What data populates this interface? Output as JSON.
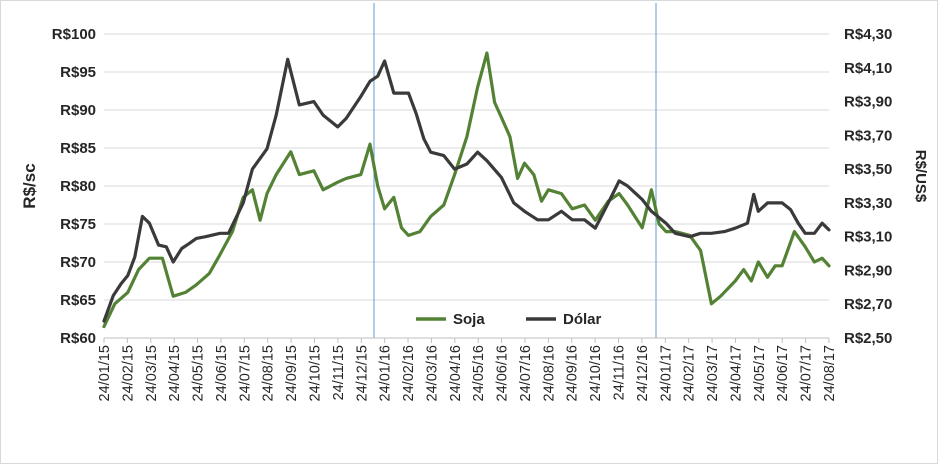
{
  "chart_data": {
    "type": "line",
    "ylabel": "R$/sc",
    "ylabel_right": "R$/US$",
    "ylim": [
      60,
      100
    ],
    "ylim_right": [
      2.5,
      4.3
    ],
    "grid": "horizontal",
    "legend_position": "bottom-center",
    "y_ticks": [
      "R$60",
      "R$65",
      "R$70",
      "R$75",
      "R$80",
      "R$85",
      "R$90",
      "R$95",
      "R$100"
    ],
    "y_right_ticks": [
      "R$2,50",
      "R$2,70",
      "R$2,90",
      "R$3,10",
      "R$3,30",
      "R$3,50",
      "R$3,70",
      "R$3,90",
      "R$4,10",
      "R$4,30"
    ],
    "x_ticks": [
      "24/01/15",
      "24/02/15",
      "24/03/15",
      "24/04/15",
      "24/05/15",
      "24/06/15",
      "24/07/15",
      "24/08/15",
      "24/09/15",
      "24/10/15",
      "24/11/15",
      "24/12/15",
      "24/01/16",
      "24/02/16",
      "24/03/16",
      "24/04/16",
      "24/05/16",
      "24/06/16",
      "24/07/16",
      "24/08/16",
      "24/09/16",
      "24/10/16",
      "24/11/16",
      "24/12/16",
      "24/01/17",
      "24/02/17",
      "24/03/17",
      "24/04/17",
      "24/05/17",
      "24/06/17",
      "24/07/17",
      "24/08/17"
    ],
    "reference_lines_at": [
      "01/01/16",
      "01/01/17"
    ],
    "series": [
      {
        "name": "Soja",
        "axis": "left",
        "color": "#548235",
        "points": [
          [
            "2015-01-24",
            61.5
          ],
          [
            "2015-02-07",
            64.5
          ],
          [
            "2015-02-24",
            66.0
          ],
          [
            "2015-03-10",
            69.0
          ],
          [
            "2015-03-24",
            70.5
          ],
          [
            "2015-04-10",
            70.5
          ],
          [
            "2015-04-24",
            65.5
          ],
          [
            "2015-05-10",
            66.0
          ],
          [
            "2015-05-24",
            67.0
          ],
          [
            "2015-06-10",
            68.5
          ],
          [
            "2015-06-24",
            71.0
          ],
          [
            "2015-07-10",
            74.0
          ],
          [
            "2015-07-24",
            78.5
          ],
          [
            "2015-08-05",
            79.5
          ],
          [
            "2015-08-15",
            75.5
          ],
          [
            "2015-08-24",
            79.0
          ],
          [
            "2015-09-05",
            81.5
          ],
          [
            "2015-09-24",
            84.5
          ],
          [
            "2015-10-05",
            81.5
          ],
          [
            "2015-10-24",
            82.0
          ],
          [
            "2015-11-05",
            79.5
          ],
          [
            "2015-11-24",
            80.5
          ],
          [
            "2015-12-05",
            81.0
          ],
          [
            "2015-12-24",
            81.5
          ],
          [
            "2016-01-05",
            85.5
          ],
          [
            "2016-01-15",
            80.0
          ],
          [
            "2016-01-24",
            77.0
          ],
          [
            "2016-02-05",
            78.5
          ],
          [
            "2016-02-15",
            74.5
          ],
          [
            "2016-02-24",
            73.5
          ],
          [
            "2016-03-10",
            74.0
          ],
          [
            "2016-03-24",
            76.0
          ],
          [
            "2016-04-10",
            77.5
          ],
          [
            "2016-04-24",
            81.5
          ],
          [
            "2016-05-10",
            86.5
          ],
          [
            "2016-05-24",
            93.0
          ],
          [
            "2016-06-05",
            97.5
          ],
          [
            "2016-06-15",
            91.0
          ],
          [
            "2016-06-24",
            89.0
          ],
          [
            "2016-07-05",
            86.5
          ],
          [
            "2016-07-15",
            81.0
          ],
          [
            "2016-07-24",
            83.0
          ],
          [
            "2016-08-05",
            81.5
          ],
          [
            "2016-08-15",
            78.0
          ],
          [
            "2016-08-24",
            79.5
          ],
          [
            "2016-09-10",
            79.0
          ],
          [
            "2016-09-24",
            77.0
          ],
          [
            "2016-10-10",
            77.5
          ],
          [
            "2016-10-24",
            75.5
          ],
          [
            "2016-11-10",
            78.0
          ],
          [
            "2016-11-24",
            79.0
          ],
          [
            "2016-12-05",
            77.5
          ],
          [
            "2016-12-24",
            74.5
          ],
          [
            "2017-01-05",
            79.5
          ],
          [
            "2017-01-15",
            75.0
          ],
          [
            "2017-01-24",
            74.0
          ],
          [
            "2017-02-05",
            74.0
          ],
          [
            "2017-02-24",
            73.5
          ],
          [
            "2017-03-10",
            71.5
          ],
          [
            "2017-03-24",
            64.5
          ],
          [
            "2017-04-05",
            65.5
          ],
          [
            "2017-04-24",
            67.5
          ],
          [
            "2017-05-05",
            69.0
          ],
          [
            "2017-05-15",
            67.5
          ],
          [
            "2017-05-24",
            70.0
          ],
          [
            "2017-06-05",
            68.0
          ],
          [
            "2017-06-15",
            69.5
          ],
          [
            "2017-06-24",
            69.5
          ],
          [
            "2017-07-10",
            74.0
          ],
          [
            "2017-07-24",
            72.0
          ],
          [
            "2017-08-05",
            70.0
          ],
          [
            "2017-08-15",
            70.5
          ],
          [
            "2017-08-24",
            69.5
          ]
        ]
      },
      {
        "name": "Dólar",
        "axis": "right",
        "color": "#3a3a3a",
        "points": [
          [
            "2015-01-24",
            2.6
          ],
          [
            "2015-02-05",
            2.75
          ],
          [
            "2015-02-15",
            2.82
          ],
          [
            "2015-02-24",
            2.87
          ],
          [
            "2015-03-05",
            2.98
          ],
          [
            "2015-03-15",
            3.22
          ],
          [
            "2015-03-24",
            3.18
          ],
          [
            "2015-04-05",
            3.05
          ],
          [
            "2015-04-15",
            3.04
          ],
          [
            "2015-04-24",
            2.95
          ],
          [
            "2015-05-05",
            3.03
          ],
          [
            "2015-05-15",
            3.06
          ],
          [
            "2015-05-24",
            3.09
          ],
          [
            "2015-06-05",
            3.1
          ],
          [
            "2015-06-24",
            3.12
          ],
          [
            "2015-07-05",
            3.12
          ],
          [
            "2015-07-24",
            3.3
          ],
          [
            "2015-08-05",
            3.5
          ],
          [
            "2015-08-24",
            3.62
          ],
          [
            "2015-09-05",
            3.82
          ],
          [
            "2015-09-20",
            4.15
          ],
          [
            "2015-10-05",
            3.88
          ],
          [
            "2015-10-24",
            3.9
          ],
          [
            "2015-11-05",
            3.82
          ],
          [
            "2015-11-24",
            3.75
          ],
          [
            "2015-12-05",
            3.8
          ],
          [
            "2015-12-24",
            3.93
          ],
          [
            "2016-01-05",
            4.02
          ],
          [
            "2016-01-15",
            4.05
          ],
          [
            "2016-01-24",
            4.14
          ],
          [
            "2016-02-05",
            3.95
          ],
          [
            "2016-02-24",
            3.95
          ],
          [
            "2016-03-05",
            3.83
          ],
          [
            "2016-03-15",
            3.68
          ],
          [
            "2016-03-24",
            3.6
          ],
          [
            "2016-04-10",
            3.58
          ],
          [
            "2016-04-24",
            3.5
          ],
          [
            "2016-05-10",
            3.53
          ],
          [
            "2016-05-24",
            3.6
          ],
          [
            "2016-06-05",
            3.55
          ],
          [
            "2016-06-24",
            3.45
          ],
          [
            "2016-07-10",
            3.3
          ],
          [
            "2016-07-24",
            3.25
          ],
          [
            "2016-08-10",
            3.2
          ],
          [
            "2016-08-24",
            3.2
          ],
          [
            "2016-09-10",
            3.25
          ],
          [
            "2016-09-24",
            3.2
          ],
          [
            "2016-10-10",
            3.2
          ],
          [
            "2016-10-24",
            3.15
          ],
          [
            "2016-11-10",
            3.3
          ],
          [
            "2016-11-24",
            3.43
          ],
          [
            "2016-12-05",
            3.4
          ],
          [
            "2016-12-24",
            3.32
          ],
          [
            "2017-01-05",
            3.25
          ],
          [
            "2017-01-24",
            3.18
          ],
          [
            "2017-02-05",
            3.12
          ],
          [
            "2017-02-24",
            3.1
          ],
          [
            "2017-03-10",
            3.12
          ],
          [
            "2017-03-24",
            3.12
          ],
          [
            "2017-04-10",
            3.13
          ],
          [
            "2017-04-24",
            3.15
          ],
          [
            "2017-05-10",
            3.18
          ],
          [
            "2017-05-18",
            3.35
          ],
          [
            "2017-05-24",
            3.25
          ],
          [
            "2017-06-05",
            3.3
          ],
          [
            "2017-06-24",
            3.3
          ],
          [
            "2017-07-05",
            3.26
          ],
          [
            "2017-07-15",
            3.18
          ],
          [
            "2017-07-24",
            3.12
          ],
          [
            "2017-08-05",
            3.12
          ],
          [
            "2017-08-15",
            3.18
          ],
          [
            "2017-08-24",
            3.14
          ]
        ]
      }
    ]
  }
}
